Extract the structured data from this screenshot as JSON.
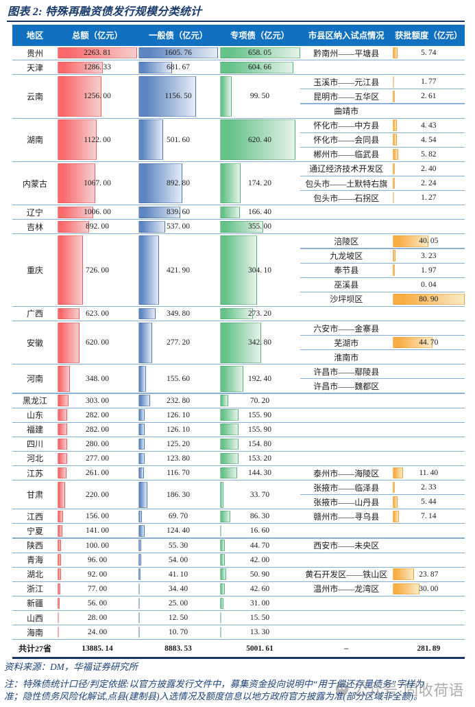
{
  "title": "图表 2: 特殊再融资债发行规模分类统计",
  "source": "资料来源：DM，华福证券研究所",
  "notes": [
    "注：特殊债统计口径/判定依据:以官方披露发行文件中，募集资金投向说明中“用于偿还存量债务”字样为",
    "准；隐性债务风险化解试,点县(建制县)入选情况及额度信息以地方政府官方披露为准(部分区域非全额)。"
  ],
  "watermark": {
    "icon": "chat-face-icon",
    "text": "公众号·固收荷语"
  },
  "colors": {
    "header_blue": "#1170BF",
    "rule_navy": "#17375E",
    "separator_blue": "#8AB0D8",
    "bar_red": "#f9696c",
    "bar_blue": "#5c85c1",
    "bar_green": "#65c289",
    "bar_orange": "#f8ae45",
    "note_blue": "#1E4278",
    "watermark_gray": "#7d7d7d"
  },
  "chart_data": {
    "type": "table",
    "title": "图表 2: 特殊再融资债发行规模分类统计",
    "columns": [
      "地区",
      "总额（亿元）",
      "一般债（亿元）",
      "专项债（亿元）",
      "市县区纳入试点情况",
      "获批额度（亿元）"
    ],
    "bar_scale_max": {
      "total": 2263.81,
      "general": 1605.76,
      "special": 658.05,
      "quota": 80.9
    },
    "rows": [
      {
        "region": "贵州",
        "total": 2263.81,
        "general": 1605.76,
        "special": 658.05,
        "pilots": [
          {
            "name": "黔南州——平塘县",
            "quota": 5.74
          }
        ]
      },
      {
        "region": "天津",
        "total": 1286.33,
        "general": 681.67,
        "special": 604.66,
        "pilots": []
      },
      {
        "region": "云南",
        "total": 1256.0,
        "general": 1156.5,
        "special": 99.5,
        "pilots": [
          {
            "name": "玉溪市——元江县",
            "quota": 1.77
          },
          {
            "name": "昆明市——五华区",
            "quota": 2.61
          },
          {
            "name": "曲靖市",
            "quota": null
          }
        ]
      },
      {
        "region": "湖南",
        "total": 1122.0,
        "general": 501.6,
        "special": 620.4,
        "pilots": [
          {
            "name": "怀化市——中方县",
            "quota": 4.43
          },
          {
            "name": "怀化市——会同县",
            "quota": 4.54
          },
          {
            "name": "郴州市——临武县",
            "quota": 5.82
          }
        ]
      },
      {
        "region": "内蒙古",
        "total": 1067.0,
        "general": 892.8,
        "special": 174.2,
        "pilots": [
          {
            "name": "通辽经济技术开发区",
            "quota": 2.4
          },
          {
            "name": "包头市——土默特右旗",
            "quota": 2.24
          },
          {
            "name": "包头市——石拐区",
            "quota": 1.27
          }
        ]
      },
      {
        "region": "辽宁",
        "total": 1006.0,
        "general": 839.6,
        "special": 166.4,
        "pilots": []
      },
      {
        "region": "吉林",
        "total": 892.0,
        "general": 537.0,
        "special": 355.0,
        "pilots": []
      },
      {
        "region": "重庆",
        "total": 726.0,
        "general": 421.9,
        "special": 304.1,
        "pilots": [
          {
            "name": "涪陵区",
            "quota": 40.05
          },
          {
            "name": "九龙坡区",
            "quota": 3.23
          },
          {
            "name": "奉节县",
            "quota": 1.97
          },
          {
            "name": "巫溪县",
            "quota": 0.04
          },
          {
            "name": "沙坪坝区",
            "quota": 80.9
          }
        ]
      },
      {
        "region": "广西",
        "total": 623.0,
        "general": 349.8,
        "special": 273.2,
        "pilots": []
      },
      {
        "region": "安徽",
        "total": 620.0,
        "general": 277.2,
        "special": 342.8,
        "pilots": [
          {
            "name": "六安市——金寨县",
            "quota": null
          },
          {
            "name": "芜湖市",
            "quota": 44.7
          },
          {
            "name": "淮南市",
            "quota": null
          }
        ]
      },
      {
        "region": "河南",
        "total": 348.0,
        "general": 155.6,
        "special": 192.4,
        "pilots": [
          {
            "name": "许昌市——鄢陵县",
            "quota": null
          },
          {
            "name": "许昌市——魏都区",
            "quota": null
          }
        ]
      },
      {
        "region": "黑龙江",
        "total": 303.0,
        "general": 232.8,
        "special": 70.2,
        "pilots": []
      },
      {
        "region": "山东",
        "total": 282.0,
        "general": 126.1,
        "special": 155.9,
        "pilots": []
      },
      {
        "region": "福建",
        "total": 282.0,
        "general": 126.1,
        "special": 155.9,
        "pilots": []
      },
      {
        "region": "四川",
        "total": 280.0,
        "general": 125.2,
        "special": 154.8,
        "pilots": []
      },
      {
        "region": "河北",
        "total": 277.0,
        "general": 123.8,
        "special": 153.2,
        "pilots": []
      },
      {
        "region": "江苏",
        "total": 261.0,
        "general": 116.7,
        "special": 144.3,
        "pilots": [
          {
            "name": "泰州市——海陵区",
            "quota": 11.4
          }
        ]
      },
      {
        "region": "甘肃",
        "total": 220.0,
        "general": 186.3,
        "special": 33.7,
        "pilots": [
          {
            "name": "张掖市——临泽县",
            "quota": 2.33
          },
          {
            "name": "张掖市——山丹县",
            "quota": 5.44
          }
        ]
      },
      {
        "region": "江西",
        "total": 156.0,
        "general": 69.7,
        "special": 86.3,
        "pilots": [
          {
            "name": "赣州市——寻乌县",
            "quota": 7.14
          }
        ]
      },
      {
        "region": "宁夏",
        "total": 141.0,
        "general": 124.4,
        "special": 16.6,
        "pilots": []
      },
      {
        "region": "陕西",
        "total": 100.0,
        "general": 55.3,
        "special": 44.7,
        "pilots": [
          {
            "name": "西安市——未央区",
            "quota": null
          }
        ]
      },
      {
        "region": "青海",
        "total": 96.0,
        "general": 54.0,
        "special": 42.0,
        "pilots": []
      },
      {
        "region": "湖北",
        "total": 92.0,
        "general": 41.1,
        "special": 50.9,
        "pilots": [
          {
            "name": "黄石开发区——铁山区",
            "quota": 23.87
          }
        ]
      },
      {
        "region": "浙江",
        "total": 77.0,
        "general": 34.4,
        "special": 42.6,
        "pilots": [
          {
            "name": "温州市——龙湾区",
            "quota": 30.0
          }
        ]
      },
      {
        "region": "新疆",
        "total": 56.0,
        "general": 25.0,
        "special": 31.0,
        "pilots": []
      },
      {
        "region": "山西",
        "total": 28.0,
        "general": 12.5,
        "special": 15.5,
        "pilots": []
      },
      {
        "region": "海南",
        "total": 24.0,
        "general": 10.7,
        "special": 13.3,
        "pilots": []
      }
    ],
    "total_row": {
      "region": "共计27省",
      "total": 13885.14,
      "general": 8883.53,
      "special": 5001.61,
      "pilots_cell": "–",
      "quota": 281.89
    }
  }
}
